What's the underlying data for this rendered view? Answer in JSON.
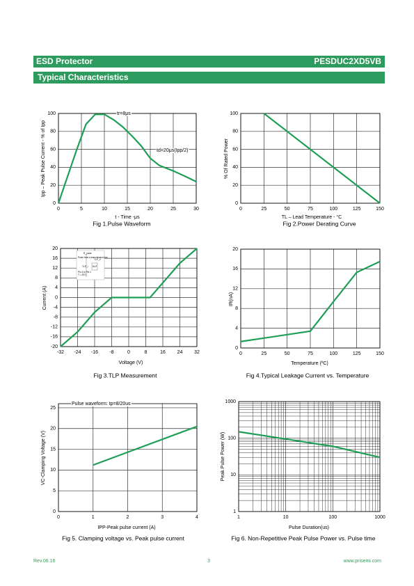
{
  "header": {
    "left": "ESD Protector",
    "right": "PESDUC2XD5VB",
    "section": "Typical Characteristics"
  },
  "footer": {
    "left": "Rev.06.16",
    "center": "3",
    "right": "www.prisemi.com"
  },
  "chart_data": [
    {
      "type": "line",
      "title": "Fig 1.Pulse Waveform",
      "xlabel": "t - Time -μs",
      "ylabel": "Ipp – Peak Pulse Current - % of Ipp",
      "annotations": [
        "tr=8μs",
        "td=20μs(Ipp/2)"
      ],
      "x": [
        0,
        2,
        4,
        6,
        8,
        10,
        12,
        14,
        16,
        18,
        20,
        22,
        25,
        28,
        30
      ],
      "values": [
        0,
        30,
        60,
        88,
        99,
        99,
        93,
        85,
        75,
        64,
        50,
        42,
        36,
        29,
        24
      ],
      "color": "#1e9e55",
      "xlim": [
        0,
        30
      ],
      "xticks": [
        0,
        5,
        10,
        15,
        20,
        25,
        30
      ],
      "ylim": [
        0,
        100
      ],
      "yticks": [
        0,
        20,
        40,
        60,
        80,
        100
      ],
      "grid": true,
      "log": false
    },
    {
      "type": "line",
      "title": "Fig 2.Power Derating Curve",
      "xlabel": "TL – Lead Temperature - °C",
      "ylabel": "% Of Rated Power",
      "x": [
        25,
        150
      ],
      "values": [
        100,
        0
      ],
      "color": "#1e9e55",
      "xlim": [
        0,
        150
      ],
      "xticks": [
        0,
        25,
        50,
        75,
        100,
        125,
        150
      ],
      "ylim": [
        0,
        100
      ],
      "yticks": [
        0,
        20,
        40,
        60,
        80,
        100
      ],
      "grid": true,
      "log": false
    },
    {
      "type": "line",
      "title": "Fig 3.TLP Measurement",
      "xlabel": "Voltage   (V)",
      "ylabel": "Current (A)",
      "inset": [
        "R_pulse",
        "Pulse from a transmission line",
        "TLP_V",
        "TLP_I",
        "DUT",
        "Pin 3 to Pin 2",
        "T = 25°C"
      ],
      "x": [
        -32,
        -28,
        -24,
        -20,
        -16,
        -12,
        -8,
        -6,
        0,
        8,
        10,
        12,
        16,
        20,
        24,
        28,
        32
      ],
      "values": [
        -20,
        -17,
        -14,
        -10,
        -6,
        -3,
        0,
        0,
        0,
        0,
        0,
        2,
        6,
        10,
        14,
        17,
        20
      ],
      "color": "#1e9e55",
      "xlim": [
        -32,
        32
      ],
      "xticks": [
        -32,
        -24,
        -16,
        -8,
        0,
        8,
        16,
        24,
        32
      ],
      "ylim": [
        -20,
        20
      ],
      "yticks": [
        -20,
        -16,
        -12,
        -8,
        -4,
        0,
        4,
        8,
        12,
        16,
        20
      ],
      "grid": true,
      "log": false
    },
    {
      "type": "line",
      "title": "Fig 4.Typical Leakage Current vs. Temperature",
      "xlabel": "Temperature (ºC)",
      "ylabel": "IR(nA)",
      "x": [
        0,
        25,
        50,
        75,
        100,
        125,
        150
      ],
      "values": [
        1.3,
        2,
        2.7,
        3.4,
        9.4,
        15.3,
        17.5
      ],
      "color": "#1e9e55",
      "xlim": [
        0,
        150
      ],
      "xticks": [
        0,
        25,
        50,
        75,
        100,
        125,
        150
      ],
      "ylim": [
        0,
        20
      ],
      "yticks": [
        0,
        4,
        8,
        12,
        16,
        20
      ],
      "grid": true,
      "log": false
    },
    {
      "type": "line",
      "title": "Fig 5. Clamping voltage vs. Peak pulse current",
      "xlabel": "IPP-Peak pulse current (A)",
      "ylabel": "VC-Clamping Voltage (V)",
      "annotations": [
        "Pulse waveform: tp=8/20us"
      ],
      "x": [
        1,
        4
      ],
      "values": [
        11.2,
        20.5
      ],
      "color": "#1e9e55",
      "xlim": [
        0,
        4
      ],
      "xticks": [
        0,
        1,
        2,
        3,
        4
      ],
      "ylim": [
        0,
        26
      ],
      "yticks": [
        0,
        5,
        10,
        15,
        20,
        25
      ],
      "grid": true,
      "log": false
    },
    {
      "type": "line",
      "title": "Fig 6. Non-Repetitive Peak Pulse Power vs. Pulse time",
      "xlabel": "Pulse Duration(us)",
      "ylabel": "Peak Pulse Power (W)",
      "x": [
        1,
        10,
        100,
        1000
      ],
      "values": [
        150,
        95,
        60,
        30
      ],
      "color": "#1e9e55",
      "xlim": [
        1,
        1000
      ],
      "xticks": [
        1,
        10,
        100,
        1000
      ],
      "ylim": [
        1,
        1000
      ],
      "yticks": [
        1,
        10,
        100,
        1000
      ],
      "grid": true,
      "log": true
    }
  ]
}
